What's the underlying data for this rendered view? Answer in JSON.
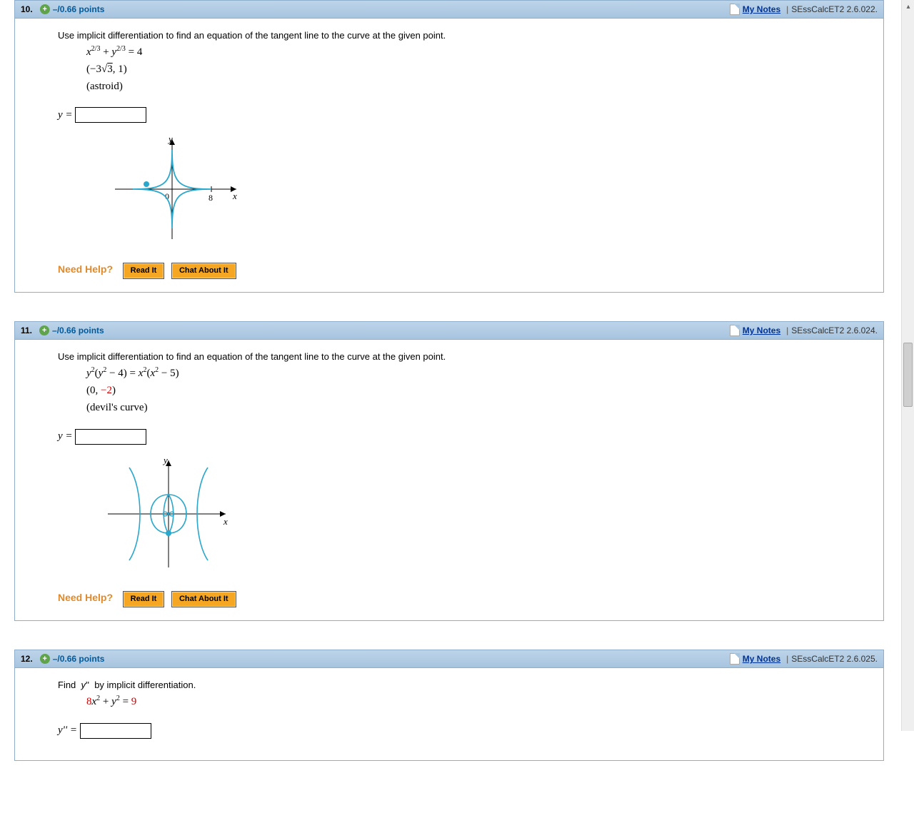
{
  "problems": [
    {
      "num": "10.",
      "points": "–/0.66 points",
      "mynotes": "My Notes",
      "ref": "SEssCalcET2 2.6.022.",
      "prompt": "Use implicit differentiation to find an equation of the tangent line to the curve at the given point.",
      "eq_html": "<span class='italic'>x</span><span class='sup'>2/3</span> + <span class='italic'>y</span><span class='sup'>2/3</span> = 4",
      "point_html": "(−3√<span style='text-decoration:overline'>3</span>, 1)",
      "curve_name": "(astroid)",
      "answer_label": "y =",
      "graph": "astroid"
    },
    {
      "num": "11.",
      "points": "–/0.66 points",
      "mynotes": "My Notes",
      "ref": "SEssCalcET2 2.6.024.",
      "prompt": "Use implicit differentiation to find an equation of the tangent line to the curve at the given point.",
      "eq_html": "<span class='italic'>y</span><span class='sup'>2</span>(<span class='italic'>y</span><span class='sup'>2</span> − 4) = <span class='italic'>x</span><span class='sup'>2</span>(<span class='italic'>x</span><span class='sup'>2</span> − 5)",
      "point_html": "(0, <span style='color:#c00'>−2</span>)",
      "curve_name": "(devil's curve)",
      "answer_label": "y =",
      "graph": "devils"
    },
    {
      "num": "12.",
      "points": "–/0.66 points",
      "mynotes": "My Notes",
      "ref": "SEssCalcET2 2.6.025.",
      "prompt": "Find&nbsp; <span class='italic'>y</span>''&nbsp; by implicit differentiation.",
      "eq_html": "<span style='color:#c00'>8</span><span class='italic'>x</span><span class='sup'>2</span> + <span class='italic'>y</span><span class='sup'>2</span> = <span style='color:#c00'>9</span>",
      "point_html": "",
      "curve_name": "",
      "answer_label": "y'' =",
      "graph": ""
    }
  ],
  "help": {
    "label": "Need Help?",
    "read": "Read It",
    "chat": "Chat About It"
  },
  "graph_style": {
    "stroke": "#2aa7cc",
    "axis": "#000000",
    "dot": "#2aa7cc"
  }
}
